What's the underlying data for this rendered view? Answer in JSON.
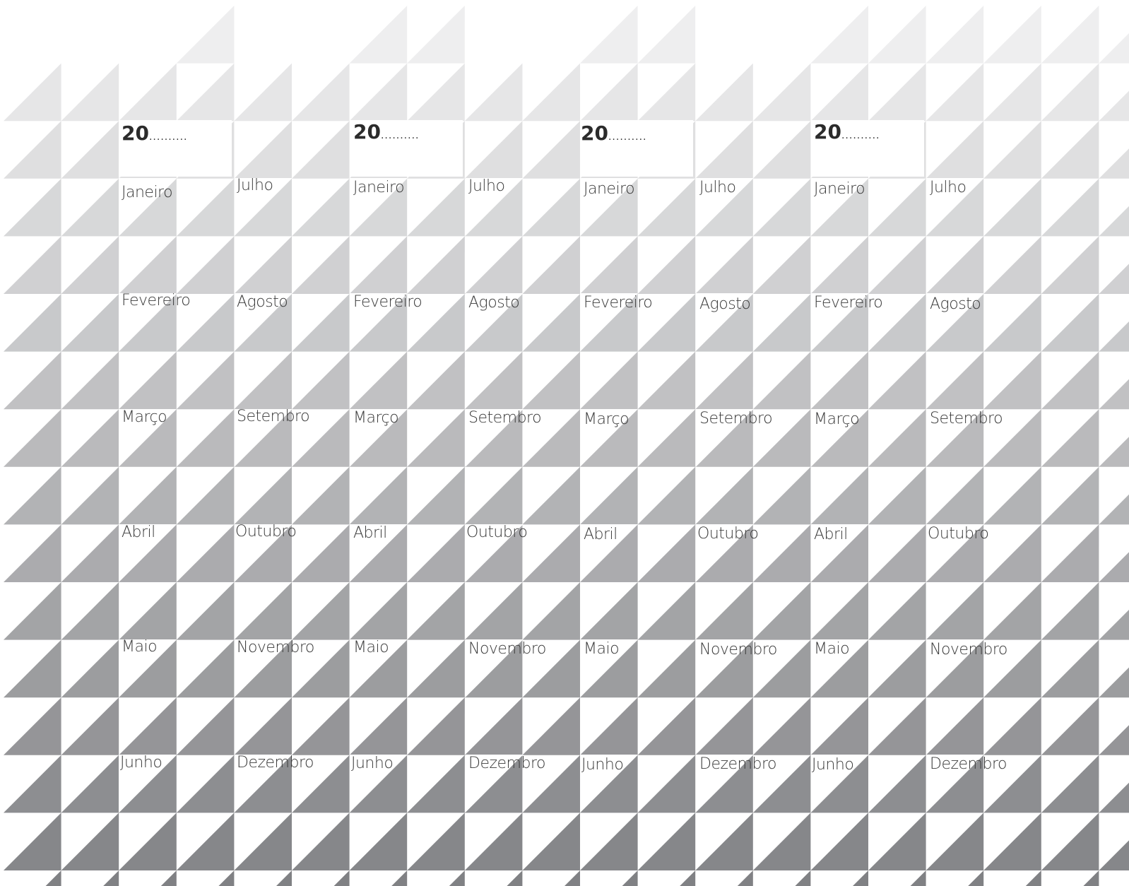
{
  "calendar": {
    "years": [
      {
        "prefix": "20",
        "dots": "..........",
        "left_months": [
          "Janeiro",
          "Fevereiro",
          "Março",
          "Abril",
          "Maio",
          "Junho"
        ],
        "right_months": [
          "Julho",
          "Agosto",
          "Setembro",
          "Outubro",
          "Novembro",
          "Dezembro"
        ]
      },
      {
        "prefix": "20",
        "dots": "..........",
        "left_months": [
          "Janeiro",
          "Fevereiro",
          "Março",
          "Abril",
          "Maio",
          "Junho"
        ],
        "right_months": [
          "Julho",
          "Agosto",
          "Setembro",
          "Outubro",
          "Novembro",
          "Dezembro"
        ]
      },
      {
        "prefix": "20",
        "dots": "..........",
        "left_months": [
          "Janeiro",
          "Fevereiro",
          "Março",
          "Abril",
          "Maio",
          "Junho"
        ],
        "right_months": [
          "Julho",
          "Agosto",
          "Setembro",
          "Outubro",
          "Novembro",
          "Dezembro"
        ]
      },
      {
        "prefix": "20",
        "dots": "..........",
        "left_months": [
          "Janeiro",
          "Fevereiro",
          "Março",
          "Abril",
          "Maio",
          "Junho"
        ],
        "right_months": [
          "Julho",
          "Agosto",
          "Setembro",
          "Outubro",
          "Novembro",
          "Dezembro"
        ]
      }
    ]
  },
  "colors": {
    "background": "#ffffff",
    "gradient_light": "#f2f2f3",
    "gradient_dark": "#808184",
    "text": "#3a3a3a"
  }
}
